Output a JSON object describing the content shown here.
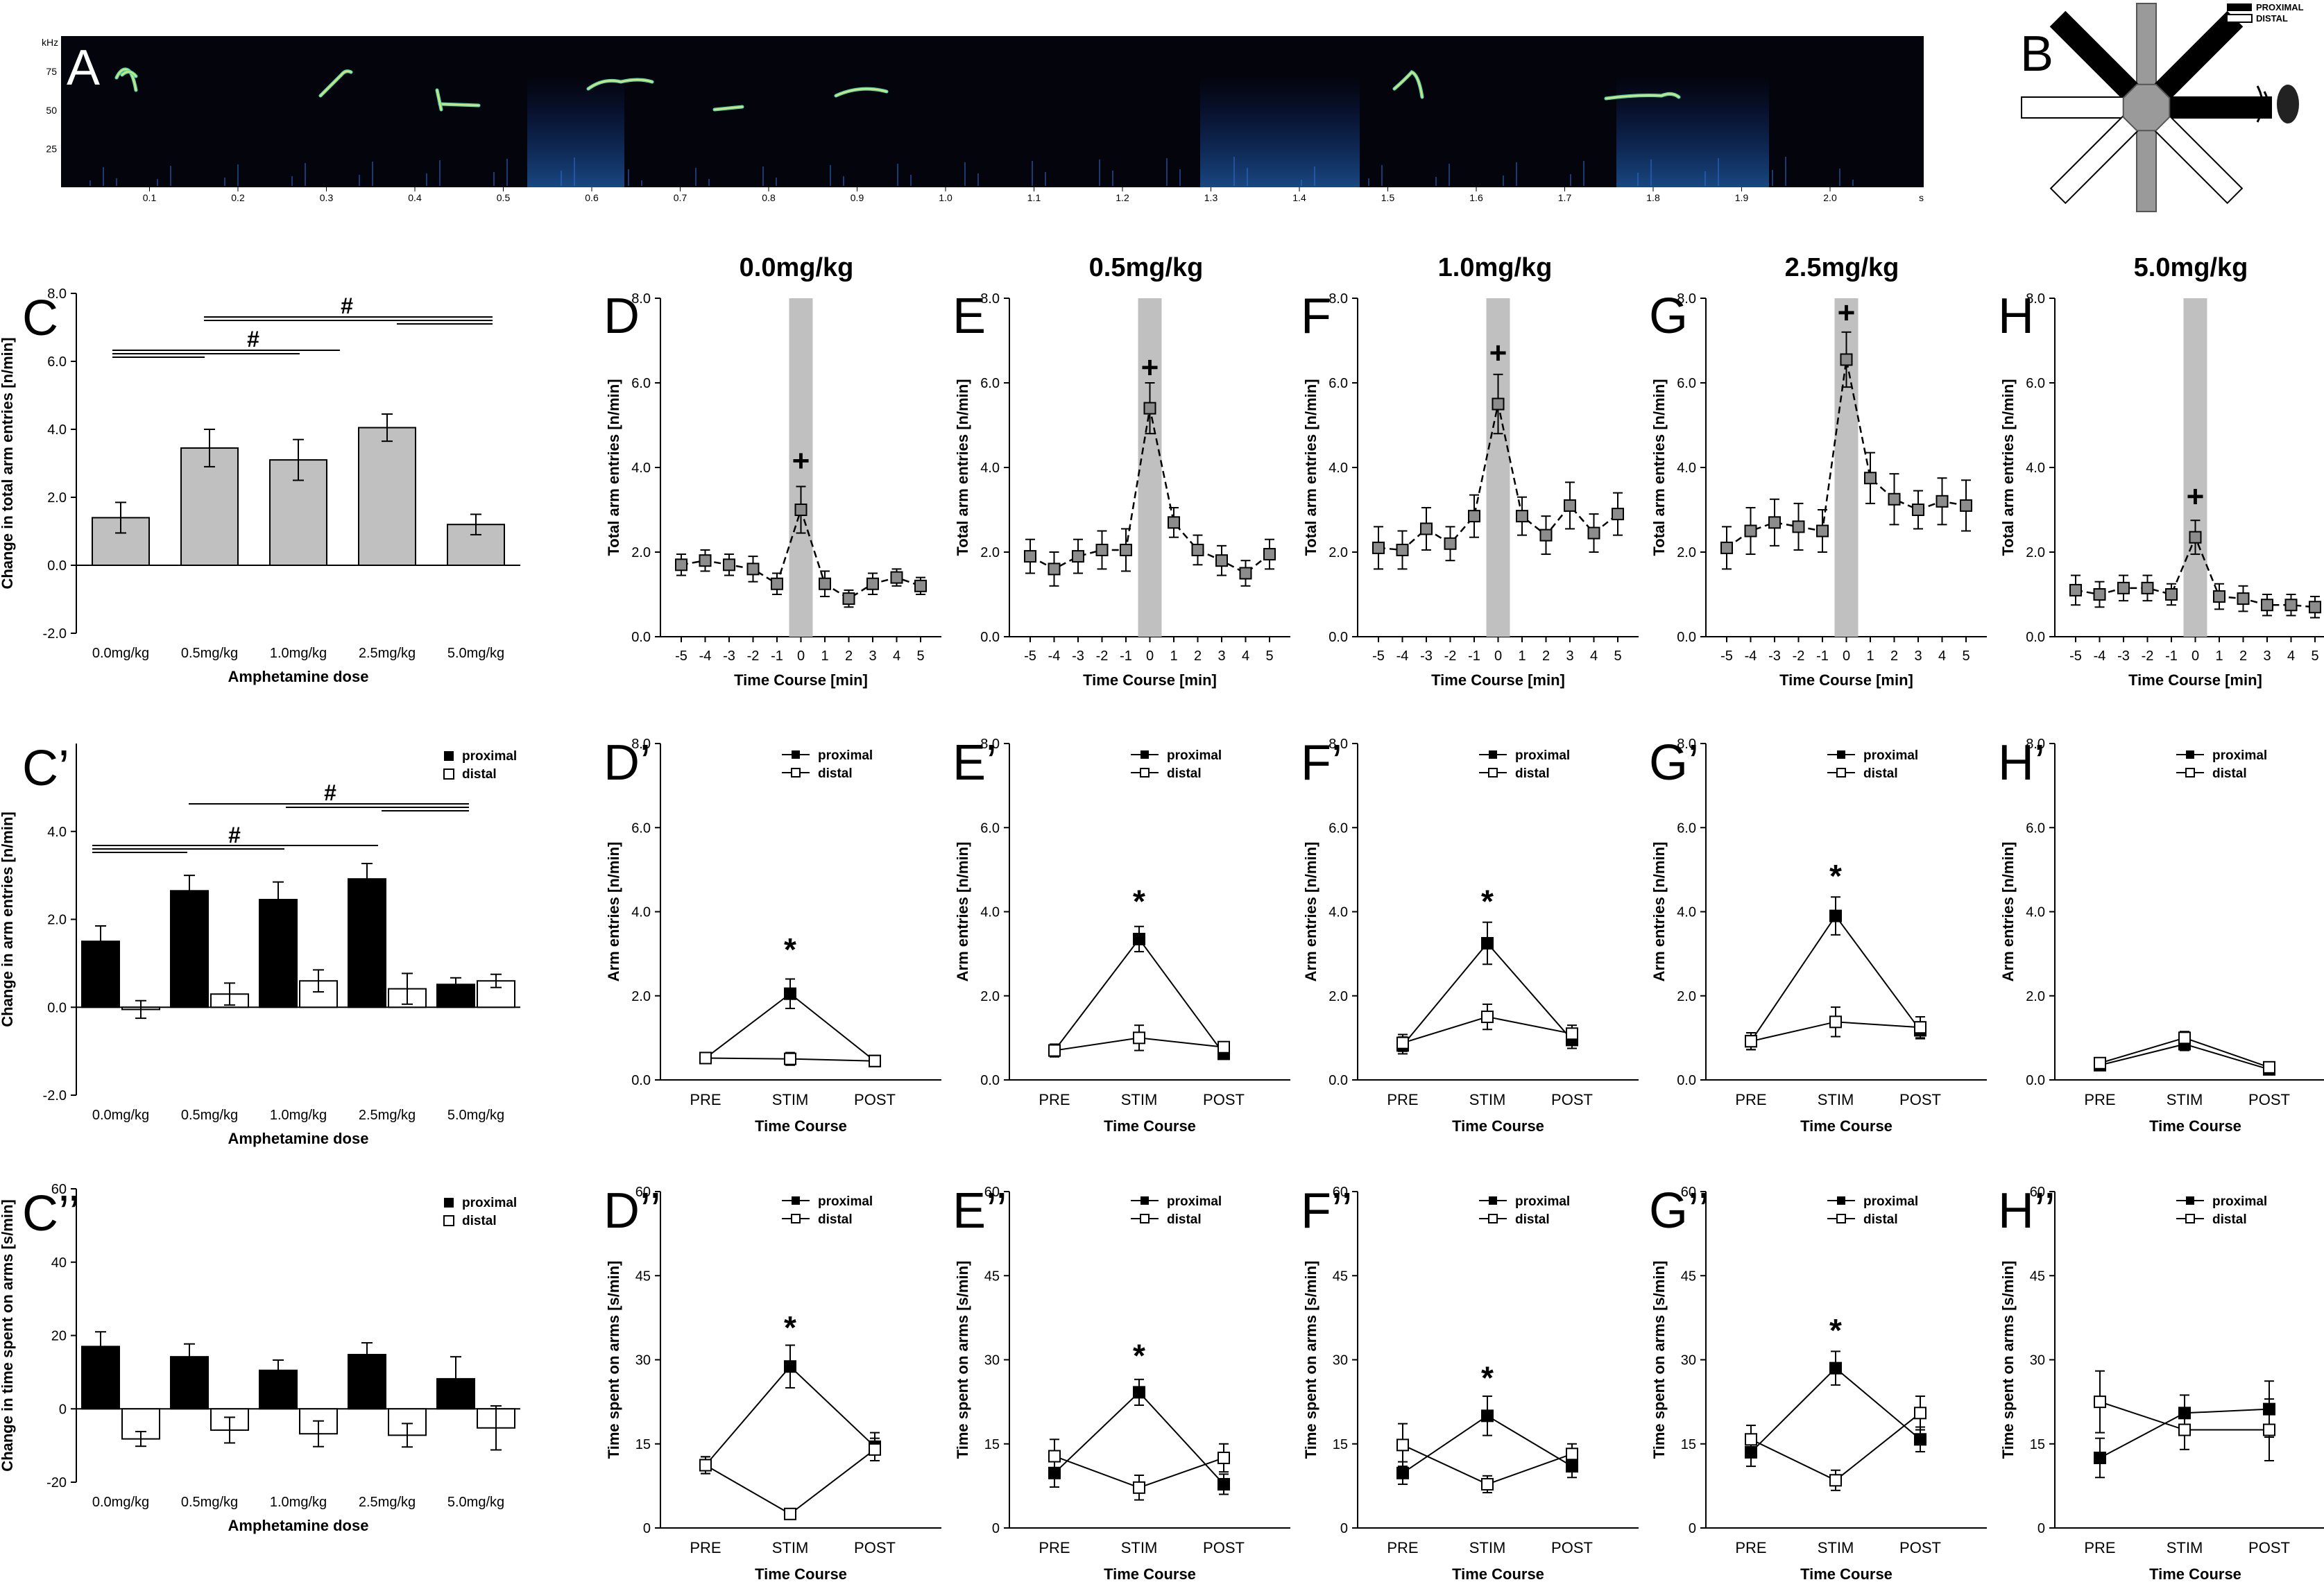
{
  "figure": {
    "spectrogram": {
      "panel_label": "A",
      "y_unit": "kHz",
      "y_ticks": [
        "75",
        "50",
        "25"
      ],
      "x_ticks": [
        "0.1",
        "0.2",
        "0.3",
        "0.4",
        "0.5",
        "0.6",
        "0.7",
        "0.8",
        "0.9",
        "1.0",
        "1.1",
        "1.2",
        "1.3",
        "1.4",
        "1.5",
        "1.6",
        "1.7",
        "1.8",
        "1.9",
        "2.0"
      ],
      "x_unit": "s"
    },
    "maze": {
      "panel_label": "B",
      "legend": [
        "PROXIMAL",
        "DISTAL"
      ],
      "colors": {
        "proximal": "#000000",
        "distal": "#ffffff",
        "center": "#9a9a9a",
        "speaker": "#222222"
      }
    },
    "column_titles": [
      "0.0mg/kg",
      "0.5mg/kg",
      "1.0mg/kg",
      "2.5mg/kg",
      "5.0mg/kg"
    ],
    "legend_proximal": "proximal",
    "legend_distal": "distal",
    "hash_symbol": "#",
    "plus_symbol": "+",
    "star_symbol": "*"
  },
  "chart_data": [
    {
      "id": "C",
      "panel_label": "C",
      "type": "bar",
      "ylabel": "Change in total arm entries [n/min]",
      "xlabel": "Amphetamine dose",
      "ylim": [
        -2,
        8
      ],
      "yticks": [
        "-2.0",
        "0.0",
        "2.0",
        "4.0",
        "6.0",
        "8.0"
      ],
      "categories": [
        "0.0mg/kg",
        "0.5mg/kg",
        "1.0mg/kg",
        "2.5mg/kg",
        "5.0mg/kg"
      ],
      "series": [
        {
          "values": [
            1.4,
            3.45,
            3.1,
            4.05,
            1.2
          ],
          "err": [
            0.45,
            0.55,
            0.6,
            0.4,
            0.3
          ],
          "color": "#c0c0c0"
        }
      ]
    },
    {
      "id": "C1",
      "panel_label": "C’",
      "type": "bar",
      "ylabel": "Change in arm entries [n/min]",
      "xlabel": "Amphetamine dose",
      "ylim": [
        -2,
        6
      ],
      "yticks": [
        "-2.0",
        "0.0",
        "2.0",
        "4.0"
      ],
      "categories": [
        "0.0mg/kg",
        "0.5mg/kg",
        "1.0mg/kg",
        "2.5mg/kg",
        "5.0mg/kg"
      ],
      "series": [
        {
          "name": "proximal",
          "values": [
            1.5,
            2.65,
            2.45,
            2.92,
            0.52
          ],
          "err": [
            0.35,
            0.35,
            0.4,
            0.35,
            0.15
          ],
          "color": "#000000"
        },
        {
          "name": "distal",
          "values": [
            -0.05,
            0.3,
            0.6,
            0.42,
            0.6
          ],
          "err": [
            0.2,
            0.25,
            0.25,
            0.35,
            0.15
          ],
          "color": "#ffffff"
        }
      ]
    },
    {
      "id": "C2",
      "panel_label": "C’’",
      "type": "bar",
      "ylabel": "Change in time spent on arms [s/min]",
      "xlabel": "Amphetamine dose",
      "ylim": [
        -20,
        60
      ],
      "yticks": [
        "-20",
        "0",
        "20",
        "40",
        "60"
      ],
      "categories": [
        "0.0mg/kg",
        "0.5mg/kg",
        "1.0mg/kg",
        "2.5mg/kg",
        "5.0mg/kg"
      ],
      "series": [
        {
          "name": "proximal",
          "values": [
            17,
            14.2,
            10.5,
            14.8,
            8.2
          ],
          "err": [
            4,
            3.5,
            2.8,
            3.2,
            6
          ],
          "color": "#000000"
        },
        {
          "name": "distal",
          "values": [
            -8.2,
            -5.8,
            -6.8,
            -7.2,
            -5.2
          ],
          "err": [
            2,
            3.5,
            3.5,
            3.2,
            6
          ],
          "color": "#ffffff"
        }
      ]
    },
    {
      "id": "D",
      "panel_label": "D",
      "type": "line",
      "dose": "0.0mg/kg",
      "ylabel": "Total arm entries [n/min]",
      "xlabel": "Time Course [min]",
      "ylim": [
        0,
        8
      ],
      "yticks": [
        "0.0",
        "2.0",
        "4.0",
        "6.0",
        "8.0"
      ],
      "x": [
        "-5",
        "-4",
        "-3",
        "-2",
        "-1",
        "0",
        "1",
        "2",
        "3",
        "4",
        "5"
      ],
      "values": [
        1.7,
        1.8,
        1.7,
        1.6,
        1.25,
        3.0,
        1.25,
        0.9,
        1.25,
        1.4,
        1.2
      ],
      "err": [
        0.25,
        0.25,
        0.25,
        0.3,
        0.25,
        0.55,
        0.3,
        0.2,
        0.25,
        0.2,
        0.2
      ],
      "plus_at": 4.15
    },
    {
      "id": "E",
      "panel_label": "E",
      "type": "line",
      "dose": "0.5mg/kg",
      "ylabel": "Total arm entries [n/min]",
      "xlabel": "Time Course [min]",
      "ylim": [
        0,
        8
      ],
      "yticks": [
        "0.0",
        "2.0",
        "4.0",
        "6.0",
        "8.0"
      ],
      "x": [
        "-5",
        "-4",
        "-3",
        "-2",
        "-1",
        "0",
        "1",
        "2",
        "3",
        "4",
        "5"
      ],
      "values": [
        1.9,
        1.6,
        1.9,
        2.05,
        2.05,
        5.4,
        2.7,
        2.05,
        1.8,
        1.5,
        1.95
      ],
      "err": [
        0.4,
        0.4,
        0.4,
        0.45,
        0.5,
        0.6,
        0.35,
        0.35,
        0.35,
        0.3,
        0.35
      ],
      "plus_at": 6.35
    },
    {
      "id": "F",
      "panel_label": "F",
      "type": "line",
      "dose": "1.0mg/kg",
      "ylabel": "Total arm entries [n/min]",
      "xlabel": "Time Course [min]",
      "ylim": [
        0,
        8
      ],
      "yticks": [
        "0.0",
        "2.0",
        "4.0",
        "6.0",
        "8.0"
      ],
      "x": [
        "-5",
        "-4",
        "-3",
        "-2",
        "-1",
        "0",
        "1",
        "2",
        "3",
        "4",
        "5"
      ],
      "values": [
        2.1,
        2.05,
        2.55,
        2.2,
        2.85,
        5.5,
        2.85,
        2.4,
        3.1,
        2.45,
        2.9
      ],
      "err": [
        0.5,
        0.45,
        0.5,
        0.4,
        0.5,
        0.7,
        0.45,
        0.45,
        0.55,
        0.45,
        0.5
      ],
      "plus_at": 6.7
    },
    {
      "id": "G",
      "panel_label": "G",
      "type": "line",
      "dose": "2.5mg/kg",
      "ylabel": "Total arm entries [n/min]",
      "xlabel": "Time Course [min]",
      "ylim": [
        0,
        8
      ],
      "yticks": [
        "0.0",
        "2.0",
        "4.0",
        "6.0",
        "8.0"
      ],
      "x": [
        "-5",
        "-4",
        "-3",
        "-2",
        "-1",
        "0",
        "1",
        "2",
        "3",
        "4",
        "5"
      ],
      "values": [
        2.1,
        2.5,
        2.7,
        2.6,
        2.5,
        6.55,
        3.75,
        3.25,
        3.0,
        3.2,
        3.1
      ],
      "err": [
        0.5,
        0.55,
        0.55,
        0.55,
        0.5,
        0.65,
        0.6,
        0.6,
        0.45,
        0.55,
        0.6
      ],
      "plus_at": 7.65
    },
    {
      "id": "H",
      "panel_label": "H",
      "type": "line",
      "dose": "5.0mg/kg",
      "ylabel": "Total arm entries [n/min]",
      "xlabel": "Time Course [min]",
      "ylim": [
        0,
        8
      ],
      "yticks": [
        "0.0",
        "2.0",
        "4.0",
        "6.0",
        "8.0"
      ],
      "x": [
        "-5",
        "-4",
        "-3",
        "-2",
        "-1",
        "0",
        "1",
        "2",
        "3",
        "4",
        "5"
      ],
      "values": [
        1.1,
        1.0,
        1.15,
        1.15,
        1.0,
        2.35,
        0.95,
        0.9,
        0.75,
        0.75,
        0.7
      ],
      "err": [
        0.35,
        0.3,
        0.3,
        0.3,
        0.25,
        0.4,
        0.3,
        0.3,
        0.25,
        0.25,
        0.25
      ],
      "plus_at": 3.3
    },
    {
      "id": "D1",
      "panel_label": "D’",
      "type": "line",
      "ylabel": "Arm entries [n/min]",
      "xlabel": "Time Course",
      "ylim": [
        0,
        8
      ],
      "yticks": [
        "0.0",
        "2.0",
        "4.0",
        "6.0",
        "8.0"
      ],
      "x": [
        "PRE",
        "STIM",
        "POST"
      ],
      "series": [
        {
          "name": "proximal",
          "values": [
            0.52,
            2.05,
            0.45
          ],
          "err": [
            0.08,
            0.35,
            0.08
          ]
        },
        {
          "name": "distal",
          "values": [
            0.52,
            0.5,
            0.45
          ],
          "err": [
            0.08,
            0.15,
            0.08
          ]
        }
      ],
      "star_at": 3.2
    },
    {
      "id": "E1",
      "panel_label": "E’",
      "type": "line",
      "ylabel": "Arm entries [n/min]",
      "xlabel": "Time Course",
      "ylim": [
        0,
        8
      ],
      "yticks": [
        "0.0",
        "2.0",
        "4.0",
        "6.0",
        "8.0"
      ],
      "x": [
        "PRE",
        "STIM",
        "POST"
      ],
      "series": [
        {
          "name": "proximal",
          "values": [
            0.7,
            3.35,
            0.62
          ],
          "err": [
            0.15,
            0.3,
            0.1
          ]
        },
        {
          "name": "distal",
          "values": [
            0.7,
            1.0,
            0.78
          ],
          "err": [
            0.15,
            0.3,
            0.12
          ]
        }
      ],
      "star_at": 4.35
    },
    {
      "id": "F1",
      "panel_label": "F’",
      "type": "line",
      "ylabel": "Arm entries [n/min]",
      "xlabel": "Time Course",
      "ylim": [
        0,
        8
      ],
      "yticks": [
        "0.0",
        "2.0",
        "4.0",
        "6.0",
        "8.0"
      ],
      "x": [
        "PRE",
        "STIM",
        "POST"
      ],
      "series": [
        {
          "name": "proximal",
          "values": [
            0.82,
            3.25,
            0.95
          ],
          "err": [
            0.2,
            0.5,
            0.2
          ]
        },
        {
          "name": "distal",
          "values": [
            0.88,
            1.5,
            1.1
          ],
          "err": [
            0.2,
            0.3,
            0.2
          ]
        }
      ],
      "star_at": 4.35
    },
    {
      "id": "G1",
      "panel_label": "G’",
      "type": "line",
      "ylabel": "Arm entries [n/min]",
      "xlabel": "Time Course",
      "ylim": [
        0,
        8
      ],
      "yticks": [
        "0.0",
        "2.0",
        "4.0",
        "6.0",
        "8.0"
      ],
      "x": [
        "PRE",
        "STIM",
        "POST"
      ],
      "series": [
        {
          "name": "proximal",
          "values": [
            0.92,
            3.9,
            1.18
          ],
          "err": [
            0.2,
            0.45,
            0.2
          ]
        },
        {
          "name": "distal",
          "values": [
            0.92,
            1.38,
            1.25
          ],
          "err": [
            0.2,
            0.35,
            0.25
          ]
        }
      ],
      "star_at": 4.95
    },
    {
      "id": "H1",
      "panel_label": "H’",
      "type": "line",
      "ylabel": "Arm entries [n/min]",
      "xlabel": "Time Course",
      "ylim": [
        0,
        8
      ],
      "yticks": [
        "0.0",
        "2.0",
        "4.0",
        "6.0",
        "8.0"
      ],
      "x": [
        "PRE",
        "STIM",
        "POST"
      ],
      "series": [
        {
          "name": "proximal",
          "values": [
            0.35,
            0.85,
            0.25
          ],
          "err": [
            0.1,
            0.15,
            0.08
          ]
        },
        {
          "name": "distal",
          "values": [
            0.4,
            1.0,
            0.3
          ],
          "err": [
            0.1,
            0.15,
            0.08
          ]
        }
      ]
    },
    {
      "id": "D2",
      "panel_label": "D’’",
      "type": "line",
      "ylabel": "Time spent on arms [s/min]",
      "xlabel": "Time Course",
      "ylim": [
        0,
        60
      ],
      "yticks": [
        "0",
        "15",
        "30",
        "45",
        "60"
      ],
      "x": [
        "PRE",
        "STIM",
        "POST"
      ],
      "series": [
        {
          "name": "proximal",
          "values": [
            11.2,
            28.8,
            14.5
          ],
          "err": [
            1.5,
            3.8,
            2.5
          ]
        },
        {
          "name": "distal",
          "values": [
            11.2,
            2.5,
            14.0
          ],
          "err": [
            1.5,
            0.7,
            2.0
          ]
        }
      ],
      "star_at": 36.5
    },
    {
      "id": "E2",
      "panel_label": "E’’",
      "type": "line",
      "ylabel": "Time spent on arms [s/min]",
      "xlabel": "Time Course",
      "ylim": [
        0,
        60
      ],
      "yticks": [
        "0",
        "15",
        "30",
        "45",
        "60"
      ],
      "x": [
        "PRE",
        "STIM",
        "POST"
      ],
      "series": [
        {
          "name": "proximal",
          "values": [
            9.8,
            24.2,
            7.8
          ],
          "err": [
            2.5,
            2.3,
            1.8
          ]
        },
        {
          "name": "distal",
          "values": [
            12.8,
            7.2,
            12.5
          ],
          "err": [
            3.0,
            2.2,
            2.5
          ]
        }
      ],
      "star_at": 31.5
    },
    {
      "id": "F2",
      "panel_label": "F’’",
      "type": "line",
      "ylabel": "Time spent on arms [s/min]",
      "xlabel": "Time Course",
      "ylim": [
        0,
        60
      ],
      "yticks": [
        "0",
        "15",
        "30",
        "45",
        "60"
      ],
      "x": [
        "PRE",
        "STIM",
        "POST"
      ],
      "series": [
        {
          "name": "proximal",
          "values": [
            9.8,
            20.0,
            11.0
          ],
          "err": [
            2.0,
            3.5,
            2.0
          ]
        },
        {
          "name": "distal",
          "values": [
            14.8,
            7.8,
            13.2
          ],
          "err": [
            3.8,
            1.5,
            1.8
          ]
        }
      ],
      "star_at": 27.5
    },
    {
      "id": "G2",
      "panel_label": "G’’",
      "type": "line",
      "ylabel": "Time spent on arms [s/min]",
      "xlabel": "Time Course",
      "ylim": [
        0,
        60
      ],
      "yticks": [
        "0",
        "15",
        "30",
        "45",
        "60"
      ],
      "x": [
        "PRE",
        "STIM",
        "POST"
      ],
      "series": [
        {
          "name": "proximal",
          "values": [
            13.5,
            28.5,
            15.8
          ],
          "err": [
            2.5,
            3.0,
            2.2
          ]
        },
        {
          "name": "distal",
          "values": [
            15.8,
            8.5,
            20.5
          ],
          "err": [
            2.5,
            1.8,
            3.0
          ]
        }
      ],
      "star_at": 36.0
    },
    {
      "id": "H2",
      "panel_label": "H’’",
      "type": "line",
      "ylabel": "Time spent on arms [s/min]",
      "xlabel": "Time Course",
      "ylim": [
        0,
        60
      ],
      "yticks": [
        "0",
        "15",
        "30",
        "45",
        "60"
      ],
      "x": [
        "PRE",
        "STIM",
        "POST"
      ],
      "series": [
        {
          "name": "proximal",
          "values": [
            12.5,
            20.5,
            21.2
          ],
          "err": [
            3.5,
            3.2,
            5.0
          ]
        },
        {
          "name": "distal",
          "values": [
            22.5,
            17.5,
            17.5
          ],
          "err": [
            5.5,
            3.5,
            5.5
          ]
        }
      ]
    }
  ]
}
